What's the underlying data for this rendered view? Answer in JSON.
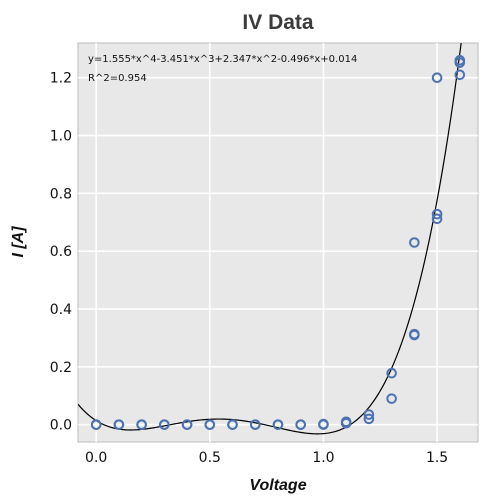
{
  "chart_data": {
    "type": "scatter",
    "title": "IV Data",
    "xlabel": "Voltage",
    "ylabel": "I [A]",
    "xlim": [
      -0.08,
      1.68
    ],
    "ylim": [
      -0.06,
      1.32
    ],
    "x_ticks": [
      0.0,
      0.5,
      1.0,
      1.5
    ],
    "x_tick_labels": [
      "0.0",
      "0.5",
      "1.0",
      "1.5"
    ],
    "y_ticks": [
      0.0,
      0.2,
      0.4,
      0.6,
      0.8,
      1.0,
      1.2
    ],
    "y_tick_labels": [
      "0.0",
      "0.2",
      "0.4",
      "0.6",
      "0.8",
      "1.0",
      "1.2"
    ],
    "grid": true,
    "background": "#e8e8e8",
    "series": [
      {
        "kind": "points",
        "color": "#4c72b0",
        "marker": "open-circle",
        "x": [
          0.0,
          0.0,
          0.1,
          0.1,
          0.2,
          0.2,
          0.3,
          0.3,
          0.4,
          0.4,
          0.5,
          0.5,
          0.6,
          0.6,
          0.7,
          0.7,
          0.8,
          0.8,
          0.9,
          0.9,
          1.0,
          1.0,
          1.1,
          1.1,
          1.2,
          1.2,
          1.3,
          1.3,
          1.4,
          1.4,
          1.4,
          1.5,
          1.5,
          1.5,
          1.6,
          1.6,
          1.6
        ],
        "y": [
          0.0,
          0.0,
          0.0,
          0.0,
          0.0,
          0.0,
          0.0,
          0.0,
          0.0,
          0.0,
          0.0,
          0.0,
          0.0,
          0.0,
          0.0,
          0.0,
          0.0,
          0.0,
          0.0,
          0.0,
          0.0,
          0.002,
          0.005,
          0.01,
          0.02,
          0.035,
          0.09,
          0.178,
          0.31,
          0.313,
          0.63,
          0.712,
          0.728,
          1.2,
          1.21,
          1.252,
          1.26
        ]
      },
      {
        "kind": "fit-line",
        "color": "#000000",
        "coefficients": [
          1.555,
          -3.451,
          2.347,
          -0.496,
          0.014
        ]
      }
    ],
    "annotations": [
      "y=1.555*x^4-3.451*x^3+2.347*x^2-0.496*x+0.014",
      "R^2=0.954"
    ]
  }
}
